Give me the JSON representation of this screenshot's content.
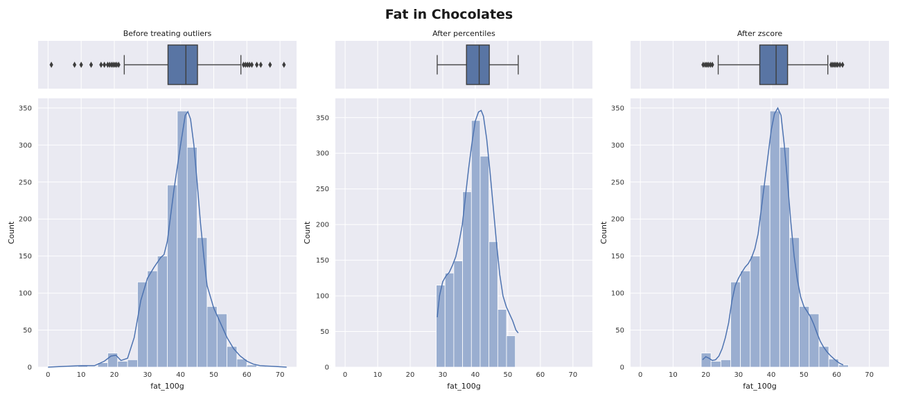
{
  "chart_data": {
    "title": "Fat in Chocolates",
    "style": {
      "panel_bg": "#EAEAF2",
      "grid": "#FFFFFF",
      "box_fill": "#5975A4",
      "box_edge": "#3D3D3D",
      "bar_fill": "#9AAED0",
      "bar_edge": "#FFFFFF",
      "kde": "#4C72B0"
    },
    "bin_edges": [
      1.5,
      4.35,
      7.2,
      10.05,
      12.9,
      15.75,
      18.6,
      21.45,
      24.3,
      27.15,
      30.0,
      32.85,
      35.7,
      38.55,
      41.4,
      44.25,
      47.1,
      49.95,
      52.8,
      55.65,
      58.5,
      61.35,
      64.2
    ],
    "panels": [
      {
        "type": "box+histogram",
        "subtitle": "Before treating outliers",
        "xlabel": "fat_100g",
        "ylabel": "Count",
        "xlim": [
          -3,
          75
        ],
        "ylim": [
          0,
          363
        ],
        "xticks": [
          0,
          10,
          20,
          30,
          40,
          50,
          60,
          70
        ],
        "yticks": [
          0,
          50,
          100,
          150,
          200,
          250,
          300,
          350
        ],
        "box": {
          "whisker_low": 23,
          "q1": 36.2,
          "median": 41.6,
          "q3": 45.1,
          "whisker_high": 58.2,
          "fliers": [
            1,
            8,
            10,
            13,
            16,
            17,
            18,
            18.6,
            19.2,
            19.7,
            20.2,
            20.7,
            21.3,
            59,
            59.6,
            60.2,
            60.8,
            61.5,
            63,
            64.2,
            67,
            71.2
          ]
        },
        "bins": [
          {
            "x0": 0,
            "x1": 3,
            "count": 1
          },
          {
            "x0": 3,
            "x1": 6,
            "count": 0
          },
          {
            "x0": 6,
            "x1": 9,
            "count": 1
          },
          {
            "x0": 9,
            "x1": 12,
            "count": 2
          },
          {
            "x0": 12,
            "x1": 15,
            "count": 1
          },
          {
            "x0": 15,
            "x1": 18,
            "count": 6
          },
          {
            "x0": 18,
            "x1": 21,
            "count": 19
          },
          {
            "x0": 21,
            "x1": 24,
            "count": 8
          },
          {
            "x0": 24,
            "x1": 27,
            "count": 10
          },
          {
            "x0": 27,
            "x1": 30,
            "count": 115
          },
          {
            "x0": 30,
            "x1": 33,
            "count": 130
          },
          {
            "x0": 33,
            "x1": 36,
            "count": 150
          },
          {
            "x0": 36,
            "x1": 39,
            "count": 246
          },
          {
            "x0": 39,
            "x1": 42,
            "count": 346
          },
          {
            "x0": 42,
            "x1": 45,
            "count": 297
          },
          {
            "x0": 45,
            "x1": 48,
            "count": 175
          },
          {
            "x0": 48,
            "x1": 51,
            "count": 82
          },
          {
            "x0": 51,
            "x1": 54,
            "count": 72
          },
          {
            "x0": 54,
            "x1": 57,
            "count": 28
          },
          {
            "x0": 57,
            "x1": 60,
            "count": 11
          },
          {
            "x0": 60,
            "x1": 63,
            "count": 3
          },
          {
            "x0": 63,
            "x1": 66,
            "count": 1
          },
          {
            "x0": 69,
            "x1": 72,
            "count": 1
          }
        ],
        "kde": [
          [
            0,
            0
          ],
          [
            5,
            1
          ],
          [
            10,
            2
          ],
          [
            14,
            2
          ],
          [
            17,
            8
          ],
          [
            19,
            15
          ],
          [
            20.5,
            16
          ],
          [
            22,
            9
          ],
          [
            24,
            12
          ],
          [
            26,
            40
          ],
          [
            28,
            90
          ],
          [
            30,
            120
          ],
          [
            32,
            135
          ],
          [
            34,
            148
          ],
          [
            35,
            152
          ],
          [
            36,
            170
          ],
          [
            38,
            240
          ],
          [
            40,
            300
          ],
          [
            41.4,
            340
          ],
          [
            42.2,
            345
          ],
          [
            43,
            335
          ],
          [
            44,
            300
          ],
          [
            45,
            250
          ],
          [
            46,
            195
          ],
          [
            47,
            150
          ],
          [
            48,
            110
          ],
          [
            50,
            80
          ],
          [
            52,
            60
          ],
          [
            54,
            40
          ],
          [
            56,
            25
          ],
          [
            58,
            15
          ],
          [
            60,
            8
          ],
          [
            62,
            4
          ],
          [
            64,
            2
          ],
          [
            68,
            1
          ],
          [
            72,
            0
          ]
        ]
      },
      {
        "type": "box+histogram",
        "subtitle": "After percentiles",
        "xlabel": "fat_100g",
        "ylabel": "Count",
        "xlim": [
          -3,
          76
        ],
        "ylim": [
          0,
          377
        ],
        "xticks": [
          0,
          10,
          20,
          30,
          40,
          50,
          60,
          70
        ],
        "yticks": [
          0,
          50,
          100,
          150,
          200,
          250,
          300,
          350
        ],
        "box": {
          "whisker_low": 28.3,
          "q1": 37.3,
          "median": 41.2,
          "q3": 44.3,
          "whisker_high": 53.2,
          "fliers": []
        },
        "bins": [
          {
            "x0": 28.0,
            "x1": 30.7,
            "count": 115
          },
          {
            "x0": 30.7,
            "x1": 33.4,
            "count": 132
          },
          {
            "x0": 33.4,
            "x1": 36.1,
            "count": 149
          },
          {
            "x0": 36.1,
            "x1": 38.8,
            "count": 246
          },
          {
            "x0": 38.8,
            "x1": 41.5,
            "count": 346
          },
          {
            "x0": 41.5,
            "x1": 44.2,
            "count": 296
          },
          {
            "x0": 44.2,
            "x1": 46.9,
            "count": 176
          },
          {
            "x0": 46.9,
            "x1": 49.6,
            "count": 81
          },
          {
            "x0": 49.6,
            "x1": 52.3,
            "count": 44
          }
        ],
        "kde": [
          [
            28.3,
            70
          ],
          [
            29,
            100
          ],
          [
            30,
            120
          ],
          [
            31,
            128
          ],
          [
            32,
            133
          ],
          [
            33,
            143
          ],
          [
            34,
            155
          ],
          [
            35,
            175
          ],
          [
            36,
            200
          ],
          [
            37,
            240
          ],
          [
            38,
            280
          ],
          [
            39,
            315
          ],
          [
            40,
            345
          ],
          [
            41,
            358
          ],
          [
            41.8,
            360
          ],
          [
            42.5,
            352
          ],
          [
            43.5,
            320
          ],
          [
            44.5,
            275
          ],
          [
            45.5,
            225
          ],
          [
            46.5,
            175
          ],
          [
            47.5,
            130
          ],
          [
            48.5,
            100
          ],
          [
            49.5,
            85
          ],
          [
            50.5,
            75
          ],
          [
            51.5,
            65
          ],
          [
            52.5,
            52
          ],
          [
            53.2,
            48
          ]
        ]
      },
      {
        "type": "box+histogram",
        "subtitle": "After zscore",
        "xlabel": "fat_100g",
        "ylabel": "Count",
        "xlim": [
          -3,
          76
        ],
        "ylim": [
          0,
          363
        ],
        "xticks": [
          0,
          10,
          20,
          30,
          40,
          50,
          60,
          70
        ],
        "yticks": [
          0,
          50,
          100,
          150,
          200,
          250,
          300,
          350
        ],
        "box": {
          "whisker_low": 23.8,
          "q1": 36.5,
          "median": 41.5,
          "q3": 45.0,
          "whisker_high": 57.3,
          "fliers": [
            19.2,
            19.8,
            20.3,
            20.8,
            21.4,
            22.0,
            58.3,
            58.8,
            59.3,
            59.8,
            60.3,
            61.0,
            61.8
          ]
        },
        "bins": [
          {
            "x0": 18.6,
            "x1": 21.6,
            "count": 19
          },
          {
            "x0": 21.6,
            "x1": 24.6,
            "count": 8
          },
          {
            "x0": 24.6,
            "x1": 27.6,
            "count": 10
          },
          {
            "x0": 27.6,
            "x1": 30.6,
            "count": 115
          },
          {
            "x0": 30.6,
            "x1": 33.6,
            "count": 130
          },
          {
            "x0": 33.6,
            "x1": 36.6,
            "count": 150
          },
          {
            "x0": 36.6,
            "x1": 39.6,
            "count": 246
          },
          {
            "x0": 39.6,
            "x1": 42.6,
            "count": 346
          },
          {
            "x0": 42.6,
            "x1": 45.6,
            "count": 297
          },
          {
            "x0": 45.6,
            "x1": 48.6,
            "count": 175
          },
          {
            "x0": 48.6,
            "x1": 51.6,
            "count": 82
          },
          {
            "x0": 51.6,
            "x1": 54.6,
            "count": 72
          },
          {
            "x0": 54.6,
            "x1": 57.6,
            "count": 28
          },
          {
            "x0": 57.6,
            "x1": 60.6,
            "count": 11
          },
          {
            "x0": 60.6,
            "x1": 63.6,
            "count": 3
          }
        ],
        "kde": [
          [
            19,
            10
          ],
          [
            20,
            14
          ],
          [
            21,
            12
          ],
          [
            22,
            9
          ],
          [
            23,
            10
          ],
          [
            24,
            15
          ],
          [
            25,
            25
          ],
          [
            26,
            40
          ],
          [
            27,
            60
          ],
          [
            28,
            90
          ],
          [
            29,
            110
          ],
          [
            30,
            120
          ],
          [
            31,
            128
          ],
          [
            32,
            135
          ],
          [
            33,
            140
          ],
          [
            34,
            148
          ],
          [
            35,
            160
          ],
          [
            36,
            180
          ],
          [
            37,
            215
          ],
          [
            38,
            250
          ],
          [
            39,
            285
          ],
          [
            40,
            320
          ],
          [
            41,
            342
          ],
          [
            42,
            350
          ],
          [
            43,
            340
          ],
          [
            44,
            300
          ],
          [
            45,
            250
          ],
          [
            46,
            195
          ],
          [
            47,
            150
          ],
          [
            48,
            118
          ],
          [
            49,
            95
          ],
          [
            50,
            82
          ],
          [
            51,
            75
          ],
          [
            52,
            68
          ],
          [
            53,
            58
          ],
          [
            54,
            46
          ],
          [
            55,
            35
          ],
          [
            56,
            27
          ],
          [
            57,
            21
          ],
          [
            58,
            16
          ],
          [
            59,
            12
          ],
          [
            60,
            8
          ],
          [
            61,
            5
          ],
          [
            62,
            3
          ]
        ]
      }
    ]
  }
}
